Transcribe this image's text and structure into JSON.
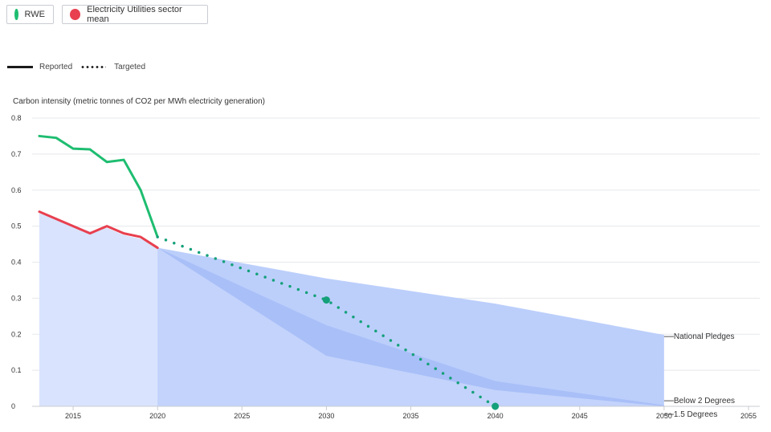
{
  "legend": {
    "companies": [
      {
        "label": "RWE",
        "color": "#1ebd70"
      },
      {
        "label": "Electricity Utilities sector mean",
        "color": "#e8404f"
      }
    ],
    "line_styles": {
      "reported": "Reported",
      "targeted": "Targeted"
    }
  },
  "chart_data": {
    "type": "line",
    "ylabel": "Carbon intensity (metric tonnes of CO2 per MWh electricity generation)",
    "xlabel": "",
    "xlim": [
      2013,
      2055
    ],
    "ylim": [
      0,
      0.8
    ],
    "x_ticks": [
      2015,
      2020,
      2025,
      2030,
      2035,
      2040,
      2045,
      2050,
      2055
    ],
    "y_ticks": [
      0,
      0.1,
      0.2,
      0.3,
      0.4,
      0.5,
      0.6,
      0.7,
      0.8
    ],
    "grid": true,
    "series": [
      {
        "name": "RWE",
        "style": "Reported",
        "color": "#1ebd70",
        "x": [
          2013,
          2014,
          2015,
          2016,
          2017,
          2018,
          2019,
          2020
        ],
        "y": [
          0.75,
          0.745,
          0.715,
          0.713,
          0.678,
          0.684,
          0.6,
          0.47
        ]
      },
      {
        "name": "RWE",
        "style": "Targeted",
        "color": "#14a07a",
        "x": [
          2020,
          2030,
          2040
        ],
        "y": [
          0.47,
          0.295,
          0.0
        ],
        "markers_at": [
          2030,
          2040
        ]
      },
      {
        "name": "Electricity Utilities sector mean",
        "style": "Reported",
        "color": "#e8404f",
        "x": [
          2013,
          2014,
          2015,
          2016,
          2017,
          2018,
          2019,
          2020
        ],
        "y": [
          0.54,
          0.52,
          0.5,
          0.48,
          0.5,
          0.48,
          0.47,
          0.44
        ]
      }
    ],
    "benchmarks": [
      {
        "name": "National Pledges",
        "color": "#bccffb",
        "x": [
          2020,
          2030,
          2040,
          2050
        ],
        "y": [
          0.44,
          0.355,
          0.285,
          0.198
        ]
      },
      {
        "name": "Below 2 Degrees",
        "color": "#a9bff8",
        "x": [
          2020,
          2030,
          2040,
          2050
        ],
        "y": [
          0.44,
          0.225,
          0.07,
          0.003
        ]
      },
      {
        "name": "1.5 Degrees",
        "color": "#d9e3fd",
        "x": [
          2013,
          2014,
          2015,
          2016,
          2017,
          2018,
          2019,
          2020,
          2030,
          2040,
          2050
        ],
        "y": [
          0.535,
          0.52,
          0.5,
          0.485,
          0.495,
          0.475,
          0.465,
          0.44,
          0.14,
          0.045,
          0.0
        ]
      }
    ]
  }
}
